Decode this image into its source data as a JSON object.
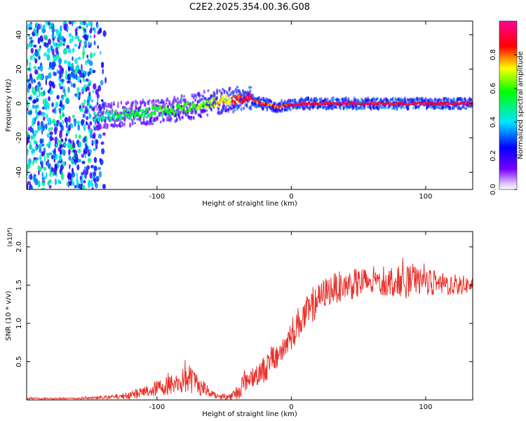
{
  "figure": {
    "title": "C2E2.2025.354.00.36.G08"
  },
  "colors": {
    "snr_line": "#e8302a",
    "axis": "#000000",
    "background": "#ffffff"
  },
  "chart_data": [
    {
      "type": "heatmap",
      "title": "C2E2.2025.354.00.36.G08",
      "xlabel": "Height of straight line (km)",
      "ylabel": "Frequency (Hz)",
      "xlim": [
        -197,
        135
      ],
      "ylim": [
        -50,
        48
      ],
      "x_ticks": [
        -100,
        0,
        100
      ],
      "y_ticks": [
        -40,
        -20,
        0,
        20,
        40
      ],
      "x_tick_labels": [
        "-100",
        "0",
        "100"
      ],
      "y_tick_labels": [
        "-40",
        "-20",
        "0",
        "20",
        "40"
      ],
      "colorbar": {
        "label": "Normalized spectral amplitude",
        "range": [
          0.0,
          1.0
        ],
        "ticks": [
          0.0,
          0.2,
          0.4,
          0.6,
          0.8
        ],
        "tick_labels": [
          "0.0",
          "0.2",
          "0.4",
          "0.6",
          "0.8"
        ],
        "colormap": [
          "#ffffff",
          "#7a00ff",
          "#0000ff",
          "#00e5ff",
          "#00ff00",
          "#ffff00",
          "#ff0000",
          "#ff00aa"
        ]
      },
      "ridge": {
        "description": "Dominant frequency track vs height",
        "x": [
          -147,
          -135,
          -120,
          -105,
          -90,
          -75,
          -65,
          -55,
          -45,
          -38,
          -32,
          -28,
          -22,
          -15,
          -10,
          -5,
          0,
          10,
          30,
          60,
          90,
          120,
          135
        ],
        "freq": [
          -8,
          -7,
          -6,
          -5,
          -4,
          -2,
          0,
          1,
          2,
          3,
          3,
          2,
          0,
          -1,
          -2,
          -1,
          -1,
          0,
          0,
          0,
          0,
          0,
          0
        ],
        "amplitude": [
          0.3,
          0.35,
          0.4,
          0.42,
          0.45,
          0.5,
          0.55,
          0.6,
          0.7,
          0.85,
          0.9,
          0.85,
          0.8,
          0.7,
          0.75,
          0.8,
          0.85,
          0.9,
          0.9,
          0.9,
          0.9,
          0.9,
          0.9
        ]
      },
      "noise_region": {
        "x_range": [
          -197,
          -140
        ],
        "freq_range": [
          -50,
          48
        ],
        "amplitude": 0.25
      }
    },
    {
      "type": "line",
      "title": "",
      "xlabel": "Height of straight line (km)",
      "ylabel": "SNR (10 * v/v)",
      "y_multiplier": "(x10⁴)",
      "xlim": [
        -197,
        135
      ],
      "ylim": [
        0,
        2.2
      ],
      "x_ticks": [
        -100,
        0,
        100
      ],
      "y_ticks": [
        0.5,
        1.0,
        1.5,
        2.0
      ],
      "x_tick_labels": [
        "-100",
        "0",
        "100"
      ],
      "y_tick_labels": [
        "0.5",
        "1.0",
        "1.5",
        "2.0"
      ],
      "series": [
        {
          "name": "SNR",
          "x": [
            -197,
            -180,
            -160,
            -140,
            -125,
            -110,
            -95,
            -85,
            -75,
            -65,
            -55,
            -45,
            -40,
            -35,
            -30,
            -25,
            -20,
            -15,
            -10,
            -5,
            0,
            5,
            10,
            15,
            20,
            25,
            30,
            40,
            50,
            60,
            70,
            80,
            90,
            100,
            110,
            120,
            130,
            135
          ],
          "y": [
            0.02,
            0.02,
            0.02,
            0.03,
            0.05,
            0.1,
            0.18,
            0.22,
            0.28,
            0.15,
            0.05,
            0.04,
            0.1,
            0.25,
            0.3,
            0.35,
            0.4,
            0.5,
            0.6,
            0.7,
            0.85,
            1.0,
            1.1,
            1.2,
            1.3,
            1.4,
            1.45,
            1.5,
            1.52,
            1.55,
            1.55,
            1.55,
            1.55,
            1.55,
            1.52,
            1.5,
            1.5,
            1.5
          ],
          "noise_amp": [
            0.01,
            0.01,
            0.01,
            0.02,
            0.04,
            0.08,
            0.12,
            0.15,
            0.2,
            0.1,
            0.04,
            0.05,
            0.12,
            0.15,
            0.15,
            0.15,
            0.18,
            0.2,
            0.2,
            0.2,
            0.22,
            0.22,
            0.22,
            0.22,
            0.2,
            0.2,
            0.2,
            0.2,
            0.2,
            0.2,
            0.2,
            0.2,
            0.2,
            0.18,
            0.15,
            0.15,
            0.12,
            0.1
          ]
        }
      ]
    }
  ]
}
